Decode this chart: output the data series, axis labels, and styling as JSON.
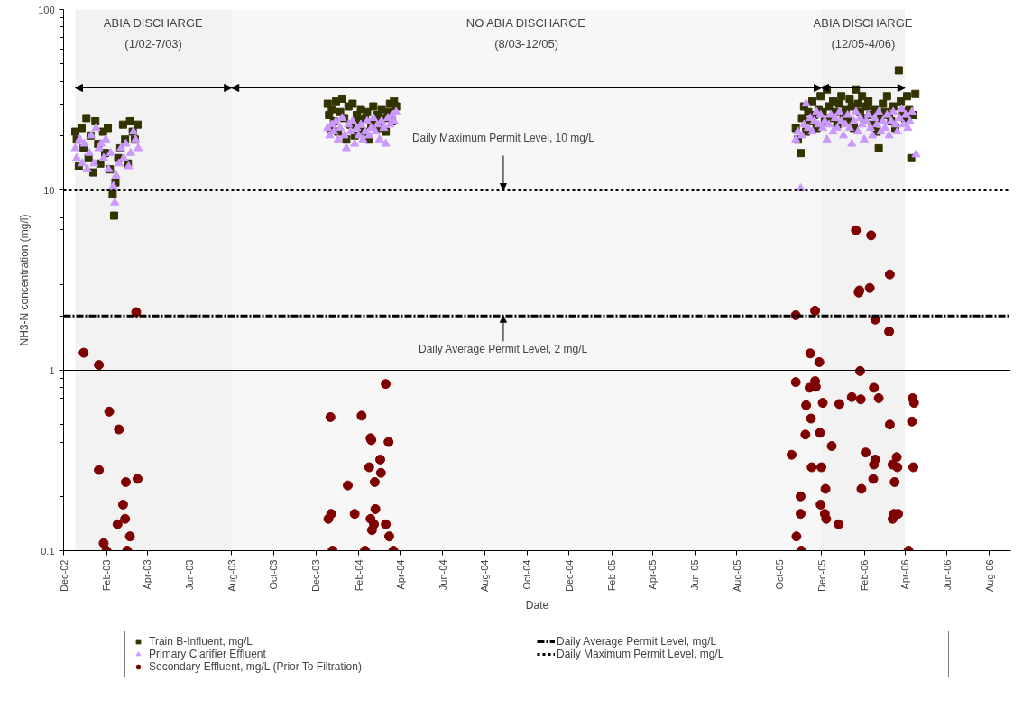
{
  "chart_data": {
    "type": "scatter",
    "xlabel": "Date",
    "ylabel": "NH3-N concentration (mg/l)",
    "log": "y",
    "legend": "bottom",
    "ref_lines": [
      {
        "axis": "y",
        "value": 1,
        "color": "#000000",
        "line_style": "solid"
      }
    ],
    "xlim": [
      "2002-12-01",
      "2006-09-01"
    ],
    "xticks": [
      {
        "value": "2002-12-01",
        "label": "Dec-02"
      },
      {
        "value": "2003-02-01",
        "label": "Feb-03"
      },
      {
        "value": "2003-04-01",
        "label": "Apr-03"
      },
      {
        "value": "2003-06-01",
        "label": "Jun-03"
      },
      {
        "value": "2003-08-01",
        "label": "Aug-03"
      },
      {
        "value": "2003-10-01",
        "label": "Oct-03"
      },
      {
        "value": "2003-12-01",
        "label": "Dec-03"
      },
      {
        "value": "2004-02-01",
        "label": "Feb-04"
      },
      {
        "value": "2004-04-01",
        "label": "Apr-04"
      },
      {
        "value": "2004-06-01",
        "label": "Jun-04"
      },
      {
        "value": "2004-08-01",
        "label": "Aug-04"
      },
      {
        "value": "2004-10-01",
        "label": "Oct-04"
      },
      {
        "value": "2004-12-01",
        "label": "Dec-04"
      },
      {
        "value": "2005-02-01",
        "label": "Feb-05"
      },
      {
        "value": "2005-04-01",
        "label": "Apr-05"
      },
      {
        "value": "2005-06-01",
        "label": "Jun-05"
      },
      {
        "value": "2005-08-01",
        "label": "Aug-05"
      },
      {
        "value": "2005-10-01",
        "label": "Oct-05"
      },
      {
        "value": "2005-12-01",
        "label": "Dec-05"
      },
      {
        "value": "2006-02-01",
        "label": "Feb-06"
      },
      {
        "value": "2006-04-01",
        "label": "Apr-06"
      },
      {
        "value": "2006-06-01",
        "label": "Jun-06"
      },
      {
        "value": "2006-08-01",
        "label": "Aug-06"
      }
    ],
    "ylim": [
      0.1,
      100
    ],
    "yticks": [
      0.1,
      1,
      10,
      100
    ],
    "series": [
      {
        "name": "Train B-Influent, mg/L",
        "marker": "square",
        "color": "#333300",
        "x": [
          "2002-12-18",
          "2002-12-20",
          "2002-12-23",
          "2002-12-27",
          "2002-12-30",
          "2003-01-03",
          "2003-01-06",
          "2003-01-09",
          "2003-01-13",
          "2003-01-16",
          "2003-01-20",
          "2003-01-23",
          "2003-01-27",
          "2003-01-30",
          "2003-02-03",
          "2003-02-06",
          "2003-02-10",
          "2003-02-12",
          "2003-02-14",
          "2003-02-18",
          "2003-02-21",
          "2003-02-25",
          "2003-02-28",
          "2003-03-04",
          "2003-03-07",
          "2003-03-11",
          "2003-03-14",
          "2003-03-18",
          "2003-12-18",
          "2003-12-20",
          "2003-12-22",
          "2003-12-24",
          "2003-12-27",
          "2003-12-30",
          "2004-01-02",
          "2004-01-05",
          "2004-01-08",
          "2004-01-11",
          "2004-01-14",
          "2004-01-17",
          "2004-01-20",
          "2004-01-23",
          "2004-01-26",
          "2004-01-29",
          "2004-02-01",
          "2004-02-04",
          "2004-02-07",
          "2004-02-10",
          "2004-02-13",
          "2004-02-16",
          "2004-02-19",
          "2004-02-22",
          "2004-02-25",
          "2004-02-28",
          "2004-03-02",
          "2004-03-05",
          "2004-03-08",
          "2004-03-11",
          "2004-03-14",
          "2004-03-17",
          "2004-03-20",
          "2004-03-23",
          "2004-03-26",
          "2005-10-25",
          "2005-10-28",
          "2005-11-01",
          "2005-11-03",
          "2005-11-06",
          "2005-11-09",
          "2005-11-12",
          "2005-11-15",
          "2005-11-18",
          "2005-11-21",
          "2005-11-24",
          "2005-11-27",
          "2005-11-30",
          "2005-12-03",
          "2005-12-06",
          "2005-12-09",
          "2005-12-12",
          "2005-12-15",
          "2005-12-18",
          "2005-12-21",
          "2005-12-24",
          "2005-12-27",
          "2005-12-30",
          "2006-01-02",
          "2006-01-05",
          "2006-01-08",
          "2006-01-11",
          "2006-01-14",
          "2006-01-17",
          "2006-01-20",
          "2006-01-23",
          "2006-01-26",
          "2006-01-29",
          "2006-02-01",
          "2006-02-04",
          "2006-02-07",
          "2006-02-10",
          "2006-02-13",
          "2006-02-16",
          "2006-02-19",
          "2006-02-22",
          "2006-02-25",
          "2006-02-28",
          "2006-03-03",
          "2006-03-06",
          "2006-03-09",
          "2006-03-12",
          "2006-03-15",
          "2006-03-18",
          "2006-03-23",
          "2006-03-26",
          "2006-03-29",
          "2006-04-01",
          "2006-04-04",
          "2006-04-07",
          "2006-04-10",
          "2006-04-13",
          "2006-04-16"
        ],
        "values": [
          21,
          19,
          13.5,
          22,
          17,
          25,
          15,
          20,
          12.5,
          24,
          18,
          14,
          21,
          16,
          22,
          13,
          9.5,
          7.2,
          11,
          15,
          17,
          23,
          19,
          14,
          24,
          21,
          19,
          23,
          30,
          26,
          22,
          28,
          24,
          31,
          21,
          27,
          32,
          25,
          19,
          29,
          23,
          30,
          20,
          26,
          24,
          28,
          21,
          25,
          27,
          19,
          23,
          29,
          24,
          26,
          22,
          28,
          25,
          21,
          27,
          30,
          24,
          31,
          29,
          22,
          19,
          16,
          25,
          29,
          21,
          27,
          24,
          31,
          26,
          22,
          28,
          33,
          27,
          24,
          36,
          29,
          25,
          31,
          27,
          23,
          30,
          33,
          26,
          28,
          24,
          32,
          29,
          22,
          36,
          30,
          27,
          33,
          25,
          29,
          31,
          26,
          23,
          28,
          21,
          17,
          25,
          30,
          27,
          33,
          26,
          24,
          29,
          22,
          46,
          31,
          27,
          25,
          33,
          28,
          15,
          26,
          34
        ]
      },
      {
        "name": "Primary Clarifier Effluent",
        "marker": "triangle",
        "color": "#cc99ff",
        "x": [
          "2002-12-18",
          "2002-12-20",
          "2002-12-24",
          "2002-12-28",
          "2002-12-31",
          "2003-01-04",
          "2003-01-07",
          "2003-01-10",
          "2003-01-14",
          "2003-01-17",
          "2003-01-21",
          "2003-01-24",
          "2003-01-28",
          "2003-01-31",
          "2003-02-04",
          "2003-02-07",
          "2003-02-11",
          "2003-02-13",
          "2003-02-15",
          "2003-02-19",
          "2003-02-22",
          "2003-02-26",
          "2003-03-01",
          "2003-03-05",
          "2003-03-08",
          "2003-03-12",
          "2003-03-15",
          "2003-03-19",
          "2003-12-18",
          "2003-12-21",
          "2003-12-24",
          "2003-12-27",
          "2003-12-30",
          "2004-01-02",
          "2004-01-05",
          "2004-01-08",
          "2004-01-11",
          "2004-01-14",
          "2004-01-17",
          "2004-01-20",
          "2004-01-23",
          "2004-01-26",
          "2004-01-29",
          "2004-02-01",
          "2004-02-04",
          "2004-02-07",
          "2004-02-10",
          "2004-02-13",
          "2004-02-16",
          "2004-02-19",
          "2004-02-22",
          "2004-02-25",
          "2004-02-28",
          "2004-03-02",
          "2004-03-05",
          "2004-03-08",
          "2004-03-11",
          "2004-03-14",
          "2004-03-17",
          "2004-03-20",
          "2004-03-23",
          "2004-03-26",
          "2005-10-25",
          "2005-10-28",
          "2005-11-01",
          "2005-11-03",
          "2005-11-06",
          "2005-11-09",
          "2005-11-12",
          "2005-11-15",
          "2005-11-18",
          "2005-11-21",
          "2005-11-24",
          "2005-11-27",
          "2005-11-30",
          "2005-12-03",
          "2005-12-06",
          "2005-12-09",
          "2005-12-12",
          "2005-12-15",
          "2005-12-18",
          "2005-12-21",
          "2005-12-24",
          "2005-12-27",
          "2005-12-30",
          "2006-01-02",
          "2006-01-05",
          "2006-01-08",
          "2006-01-11",
          "2006-01-14",
          "2006-01-17",
          "2006-01-20",
          "2006-01-23",
          "2006-01-26",
          "2006-01-29",
          "2006-02-01",
          "2006-02-04",
          "2006-02-07",
          "2006-02-10",
          "2006-02-13",
          "2006-02-16",
          "2006-02-19",
          "2006-02-22",
          "2006-02-25",
          "2006-02-28",
          "2006-03-03",
          "2006-03-06",
          "2006-03-09",
          "2006-03-12",
          "2006-03-15",
          "2006-03-18",
          "2006-03-21",
          "2006-03-24",
          "2006-03-27",
          "2006-03-30",
          "2006-04-02",
          "2006-04-05",
          "2006-04-08",
          "2006-04-11",
          "2006-04-17"
        ],
        "values": [
          17,
          15,
          19,
          14,
          18,
          13,
          16,
          20,
          14,
          22,
          17,
          18,
          15,
          19,
          13,
          16,
          10.5,
          8.5,
          12,
          14,
          17,
          15,
          18,
          13.5,
          16,
          21,
          19,
          17,
          22,
          20,
          23,
          21,
          24,
          19,
          22,
          25,
          20,
          17,
          23,
          21,
          24,
          18,
          22,
          20,
          23,
          19,
          21,
          24,
          20,
          22,
          25,
          21,
          23,
          19,
          24,
          22,
          18,
          25,
          23,
          26,
          24,
          27,
          19,
          21,
          10.2,
          20,
          23,
          30,
          22,
          25,
          21,
          24,
          27,
          23,
          26,
          22,
          24,
          19,
          23,
          26,
          21,
          25,
          22,
          27,
          24,
          20,
          23,
          26,
          22,
          18,
          24,
          27,
          21,
          25,
          23,
          19,
          24,
          26,
          22,
          20,
          25,
          23,
          27,
          21,
          24,
          22,
          26,
          20,
          24,
          27,
          23,
          21,
          25,
          28,
          23,
          26,
          22,
          24,
          27,
          15.7
        ]
      },
      {
        "name": "Secondary Effluent, mg/L (Prior To Filtration)",
        "marker": "circle",
        "color": "#800000",
        "x": [
          "2002-12-30",
          "2003-01-21",
          "2003-02-05",
          "2003-02-19",
          "2003-01-21",
          "2003-03-01",
          "2003-03-18",
          "2003-02-25",
          "2003-02-28",
          "2003-02-17",
          "2003-03-07",
          "2003-01-28",
          "2003-02-01",
          "2003-03-03",
          "2003-03-16",
          "2003-12-22",
          "2004-02-05",
          "2004-02-18",
          "2004-02-19",
          "2004-03-15",
          "2004-03-03",
          "2004-02-16",
          "2004-03-04",
          "2004-01-16",
          "2004-02-24",
          "2004-02-25",
          "2004-01-26",
          "2003-12-23",
          "2003-12-19",
          "2004-02-18",
          "2004-02-23",
          "2004-02-20",
          "2004-03-11",
          "2004-03-16",
          "2003-12-25",
          "2004-02-10",
          "2004-03-22",
          "2004-03-11",
          "2006-01-20",
          "2006-02-11",
          "2006-03-10",
          "2006-02-09",
          "2006-01-25",
          "2006-01-24",
          "2005-10-25",
          "2005-11-22",
          "2006-02-17",
          "2006-03-09",
          "2005-11-15",
          "2005-11-28",
          "2006-01-26",
          "2005-10-25",
          "2005-11-22",
          "2005-11-14",
          "2005-11-23",
          "2006-02-15",
          "2006-01-14",
          "2006-01-27",
          "2006-02-22",
          "2006-04-12",
          "2006-04-14",
          "2005-11-09",
          "2005-12-03",
          "2005-12-27",
          "2005-11-16",
          "2006-03-10",
          "2006-04-11",
          "2005-11-08",
          "2005-11-29",
          "2005-12-16",
          "2005-10-19",
          "2006-02-03",
          "2006-02-17",
          "2006-02-15",
          "2006-03-20",
          "2006-03-14",
          "2006-03-21",
          "2005-11-17",
          "2005-12-01",
          "2006-04-13",
          "2006-02-14",
          "2006-03-17",
          "2005-12-07",
          "2006-01-28",
          "2005-11-01",
          "2005-11-30",
          "2005-11-01",
          "2005-12-06",
          "2005-12-08",
          "2005-12-26",
          "2006-03-16",
          "2006-03-22",
          "2006-03-14",
          "2005-10-26",
          "2005-11-02",
          "2006-04-06"
        ],
        "values": [
          1.25,
          1.07,
          0.59,
          0.47,
          0.28,
          0.24,
          0.25,
          0.18,
          0.15,
          0.14,
          0.12,
          0.11,
          0.1,
          0.1,
          2.1,
          0.55,
          0.56,
          0.42,
          0.41,
          0.4,
          0.32,
          0.29,
          0.27,
          0.23,
          0.24,
          0.17,
          0.16,
          0.16,
          0.15,
          0.15,
          0.14,
          0.13,
          0.14,
          0.12,
          0.1,
          0.1,
          0.1,
          0.84,
          5.97,
          5.6,
          3.4,
          2.86,
          2.77,
          2.7,
          2.02,
          2.14,
          1.91,
          1.64,
          1.24,
          1.11,
          0.99,
          0.86,
          0.87,
          0.8,
          0.81,
          0.8,
          0.71,
          0.69,
          0.7,
          0.7,
          0.66,
          0.64,
          0.66,
          0.65,
          0.54,
          0.5,
          0.52,
          0.44,
          0.45,
          0.38,
          0.34,
          0.35,
          0.32,
          0.3,
          0.33,
          0.3,
          0.29,
          0.29,
          0.29,
          0.29,
          0.25,
          0.24,
          0.22,
          0.22,
          0.2,
          0.18,
          0.16,
          0.16,
          0.15,
          0.14,
          0.16,
          0.16,
          0.15,
          0.12,
          0.1,
          0.1
        ]
      },
      {
        "name": "Daily Average Permit Level, mg/L",
        "type": "line",
        "line_style": "dashed",
        "color": "#000000",
        "x": [
          "2002-12-01",
          "2006-09-01"
        ],
        "values": [
          2,
          2
        ]
      },
      {
        "name": "Daily Maximum Permit Level, mg/L",
        "type": "line",
        "line_style": "dotted",
        "color": "#000000",
        "x": [
          "2002-12-01",
          "2006-09-01"
        ],
        "values": [
          10,
          10
        ]
      }
    ],
    "bands": [
      {
        "axis": "x",
        "from": "2002-12-18",
        "to": "2003-08-01",
        "label": "ABIA DISCHARGE\n(1/02-7/03)",
        "color": "#f2f2f2"
      },
      {
        "axis": "x",
        "from": "2003-08-01",
        "to": "2005-12-01",
        "label": "NO ABIA DISCHARGE\n(8/03-12/05)",
        "color": "#f7f7f7"
      },
      {
        "axis": "x",
        "from": "2005-12-01",
        "to": "2006-04-01",
        "label": "ABIA DISCHARGE\n(12/05-4/06)",
        "color": "#f2f2f2"
      }
    ],
    "annotations": [
      {
        "text": "Daily Maximum Permit Level, 10 mg/L",
        "x": "2004-08-28",
        "y": 10
      },
      {
        "text": "Daily Average Permit Level, 2 mg/L",
        "x": "2004-08-28",
        "y": 2
      }
    ]
  }
}
